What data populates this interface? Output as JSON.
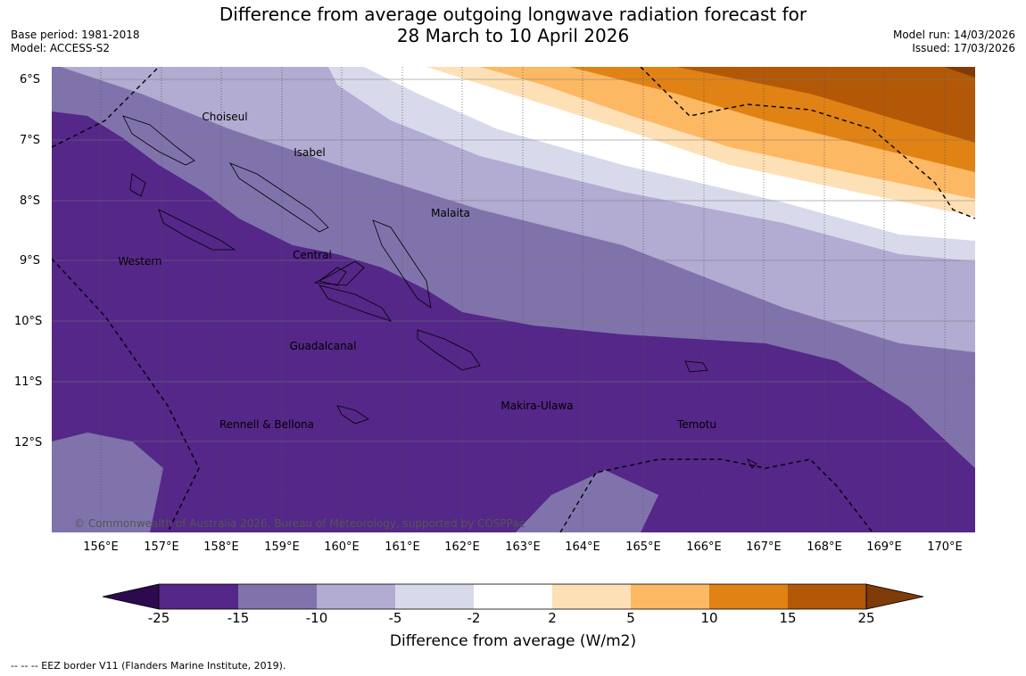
{
  "title": {
    "line1": "Difference from average outgoing longwave radiation forecast for",
    "line2": "28 March to 10 April 2026"
  },
  "meta": {
    "base_period": "Base period: 1981-2018",
    "model": "Model: ACCESS-S2",
    "model_run": "Model run: 14/03/2026",
    "issued": "Issued: 17/03/2026"
  },
  "map": {
    "lat_labels": [
      "6°S",
      "7°S",
      "8°S",
      "9°S",
      "10°S",
      "11°S",
      "12°S"
    ],
    "lon_labels": [
      "156°E",
      "157°E",
      "158°E",
      "159°E",
      "160°E",
      "161°E",
      "162°E",
      "163°E",
      "164°E",
      "165°E",
      "166°E",
      "167°E",
      "168°E",
      "169°E",
      "170°E"
    ],
    "regions": [
      "Choiseul",
      "Isabel",
      "Malaita",
      "Western",
      "Central",
      "Guadalcanal",
      "Makira-Ulawa",
      "Rennell & Bellona",
      "Temotu"
    ],
    "copyright": "© Commonwealth of Australia 2026, Bureau of Meteorology, supported by COSPPac"
  },
  "colorbar": {
    "labels": [
      "-25",
      "-15",
      "-10",
      "-5",
      "-2",
      "2",
      "5",
      "10",
      "15",
      "25"
    ],
    "colors": [
      "#2d0a4e",
      "#542788",
      "#8073ac",
      "#b2abd2",
      "#d8daeb",
      "#ffffff",
      "#fee0b6",
      "#fdb863",
      "#e08214",
      "#b35806",
      "#7f3b08"
    ],
    "title": "Difference from average (W/m2)"
  },
  "eez_note": "--  --  -- EEZ border V11 (Flanders Marine Institute, 2019)."
}
